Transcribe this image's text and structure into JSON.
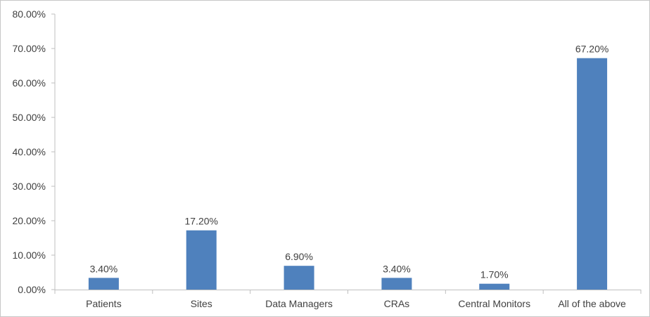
{
  "chart_data": {
    "type": "bar",
    "categories": [
      "Patients",
      "Sites",
      "Data Managers",
      "CRAs",
      "Central Monitors",
      "All of the above"
    ],
    "values": [
      3.4,
      17.2,
      6.9,
      3.4,
      1.7,
      67.2
    ],
    "data_labels": [
      "3.40%",
      "17.20%",
      "6.90%",
      "3.40%",
      "1.70%",
      "67.20%"
    ],
    "y_ticks": [
      0,
      10,
      20,
      30,
      40,
      50,
      60,
      70,
      80
    ],
    "y_tick_labels": [
      "0.00%",
      "10.00%",
      "20.00%",
      "30.00%",
      "40.00%",
      "50.00%",
      "60.00%",
      "70.00%",
      "80.00%"
    ],
    "ylim": [
      0,
      80
    ],
    "grid": false,
    "legend": "none",
    "bar_color": "#4f81bd",
    "axis_color": "#bfbfbf",
    "title": "",
    "xlabel": "",
    "ylabel": ""
  }
}
